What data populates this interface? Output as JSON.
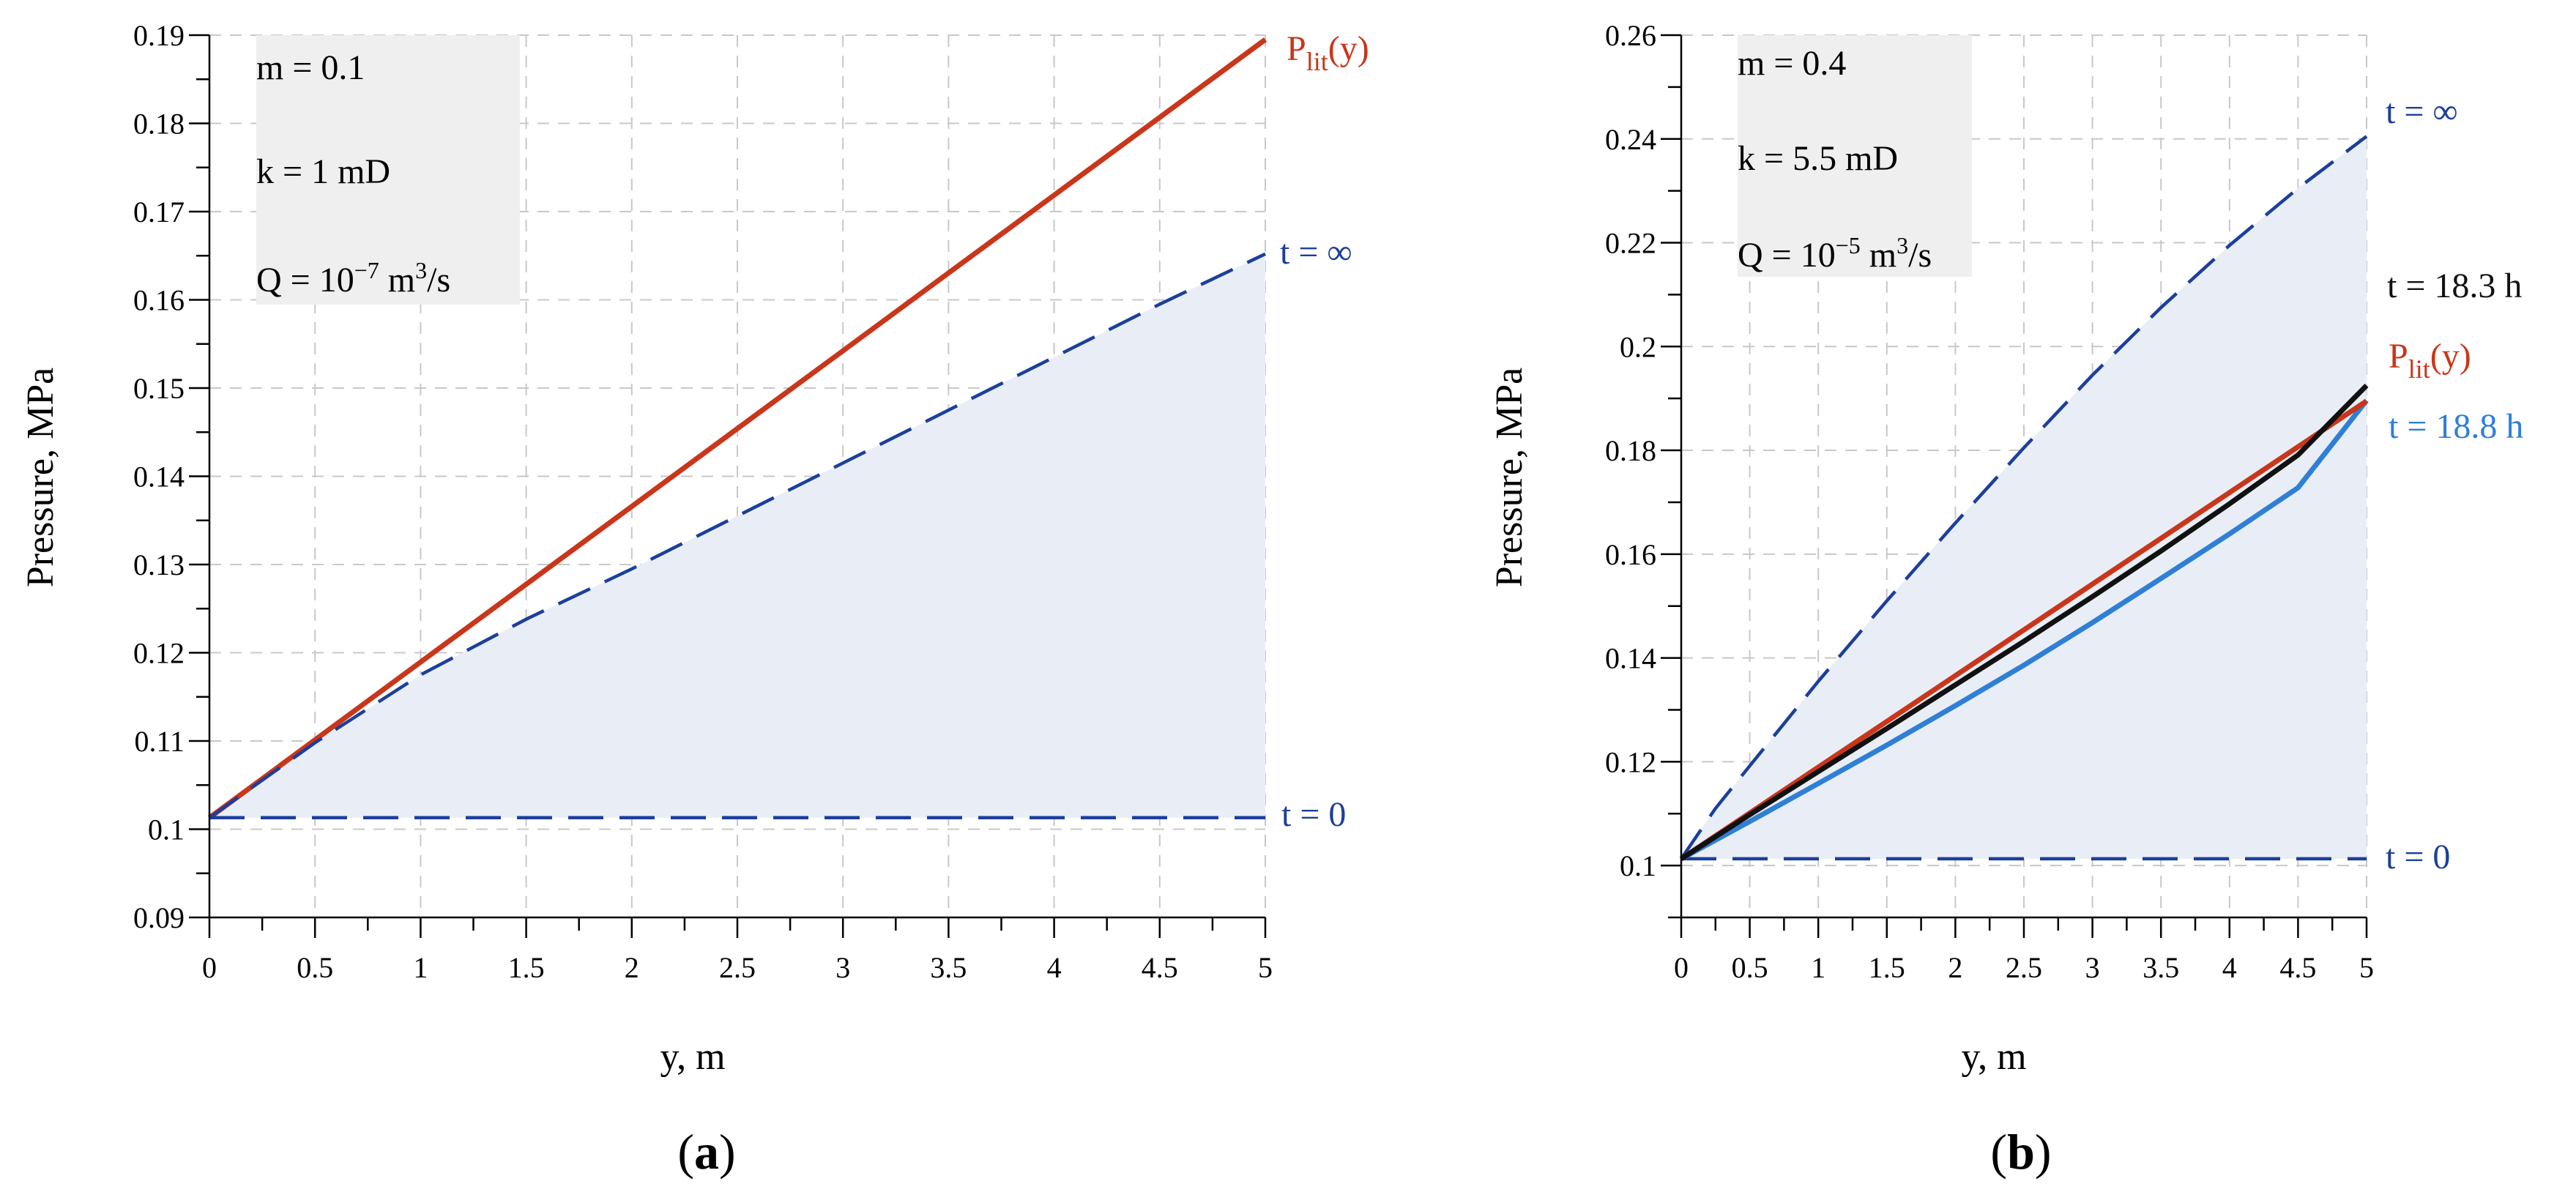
{
  "colors": {
    "plit": "#c9361a",
    "dashed": "#1c3f9b",
    "t183": "#111111",
    "t188": "#2f7fd6",
    "fill": "#e9eef6",
    "annbox": "#efefef"
  },
  "chart_data": [
    {
      "type": "line",
      "panel_label": "(a)",
      "xlabel": "y, m",
      "ylabel": "Pressure, MPa",
      "xlim": [
        0,
        5
      ],
      "ylim": [
        0.09,
        0.19
      ],
      "xticks": [
        0,
        0.5,
        1,
        1.5,
        2,
        2.5,
        3,
        3.5,
        4,
        4.5,
        5
      ],
      "xtick_labels": [
        "0",
        "0.5",
        "1",
        "1.5",
        "2",
        "2.5",
        "3",
        "3.5",
        "4",
        "4.5",
        "5"
      ],
      "yticks": [
        0.09,
        0.1,
        0.11,
        0.12,
        0.13,
        0.14,
        0.15,
        0.16,
        0.17,
        0.18,
        0.19
      ],
      "ytick_labels": [
        "0.09",
        "0.1",
        "0.11",
        "0.12",
        "0.13",
        "0.14",
        "0.15",
        "0.16",
        "0.17",
        "0.18",
        "0.19"
      ],
      "annotation": {
        "m": "m = 0.1",
        "k": "k = 1 mD",
        "q_prefix": "Q = 10",
        "q_exp": "−7",
        "q_unit_a": " m",
        "q_unit_exp": "3",
        "q_unit_b": "/s"
      },
      "series": [
        {
          "name": "P_lit(y)",
          "label_main": "P",
          "label_sub": "lit",
          "label_tail": "(y)",
          "style": "solid",
          "color_key": "plit",
          "x": [
            0,
            5
          ],
          "y": [
            0.1013,
            0.1895
          ]
        },
        {
          "name": "t = ∞",
          "label": "t = ∞",
          "style": "dashed",
          "color_key": "dashed",
          "x": [
            0,
            0.5,
            1,
            1.5,
            2,
            2.5,
            3,
            3.5,
            4,
            4.5,
            5
          ],
          "y": [
            0.1013,
            0.1098,
            0.1175,
            0.1238,
            0.1295,
            0.1355,
            0.1415,
            0.1475,
            0.1535,
            0.1595,
            0.1652
          ]
        },
        {
          "name": "t = 0",
          "label": "t = 0",
          "style": "dashed",
          "color_key": "dashed",
          "x": [
            0,
            5
          ],
          "y": [
            0.1013,
            0.1013
          ]
        }
      ]
    },
    {
      "type": "line",
      "panel_label": "(b)",
      "xlabel": "y, m",
      "ylabel": "Pressure, MPa",
      "xlim": [
        0,
        5
      ],
      "ylim": [
        0.09,
        0.26
      ],
      "xticks": [
        0,
        0.5,
        1,
        1.5,
        2,
        2.5,
        3,
        3.5,
        4,
        4.5,
        5
      ],
      "xtick_labels": [
        "0",
        "0.5",
        "1",
        "1.5",
        "2",
        "2.5",
        "3",
        "3.5",
        "4",
        "4.5",
        "5"
      ],
      "yticks": [
        0.1,
        0.12,
        0.14,
        0.16,
        0.18,
        0.2,
        0.22,
        0.24,
        0.26
      ],
      "ytick_labels": [
        "0.1",
        "0.12",
        "0.14",
        "0.16",
        "0.18",
        "0.2",
        "0.22",
        "0.24",
        "0.26"
      ],
      "annotation": {
        "m": "m = 0.4",
        "k": "k = 5.5 mD",
        "q_prefix": "Q = 10",
        "q_exp": "−5",
        "q_unit_a": " m",
        "q_unit_exp": "3",
        "q_unit_b": "/s"
      },
      "series": [
        {
          "name": "t = ∞",
          "label": "t = ∞",
          "style": "dashed",
          "color_key": "dashed",
          "x": [
            0,
            0.25,
            0.5,
            1,
            1.5,
            2,
            2.5,
            3,
            3.5,
            4,
            4.5,
            5
          ],
          "y": [
            0.1013,
            0.111,
            0.1192,
            0.1355,
            0.151,
            0.166,
            0.1805,
            0.1945,
            0.2075,
            0.2195,
            0.2305,
            0.2405
          ]
        },
        {
          "name": "t = 0",
          "label": "t = 0",
          "style": "dashed",
          "color_key": "dashed",
          "x": [
            0,
            5
          ],
          "y": [
            0.1013,
            0.1013
          ]
        },
        {
          "name": "t = 18.8 h",
          "label": "t = 18.8 h",
          "style": "solid",
          "color_key": "t188",
          "x": [
            0,
            0.5,
            1,
            1.5,
            2,
            2.5,
            3,
            3.5,
            4,
            4.5,
            5
          ],
          "y": [
            0.1013,
            0.1085,
            0.1158,
            0.1232,
            0.1308,
            0.1386,
            0.1468,
            0.1553,
            0.1639,
            0.1728,
            0.1896
          ]
        },
        {
          "name": "P_lit(y)",
          "label_main": "P",
          "label_sub": "lit",
          "label_tail": "(y)",
          "style": "solid",
          "color_key": "plit",
          "x": [
            0,
            5
          ],
          "y": [
            0.1013,
            0.1895
          ]
        },
        {
          "name": "t = 18.3 h",
          "label": "t = 18.3 h",
          "style": "solid",
          "color_key": "t183",
          "x": [
            0,
            0.5,
            1,
            1.5,
            2,
            2.5,
            3,
            3.5,
            4,
            4.5,
            5
          ],
          "y": [
            0.1013,
            0.1098,
            0.1181,
            0.1264,
            0.1348,
            0.1432,
            0.1518,
            0.1606,
            0.1697,
            0.1791,
            0.1925
          ]
        }
      ]
    }
  ]
}
